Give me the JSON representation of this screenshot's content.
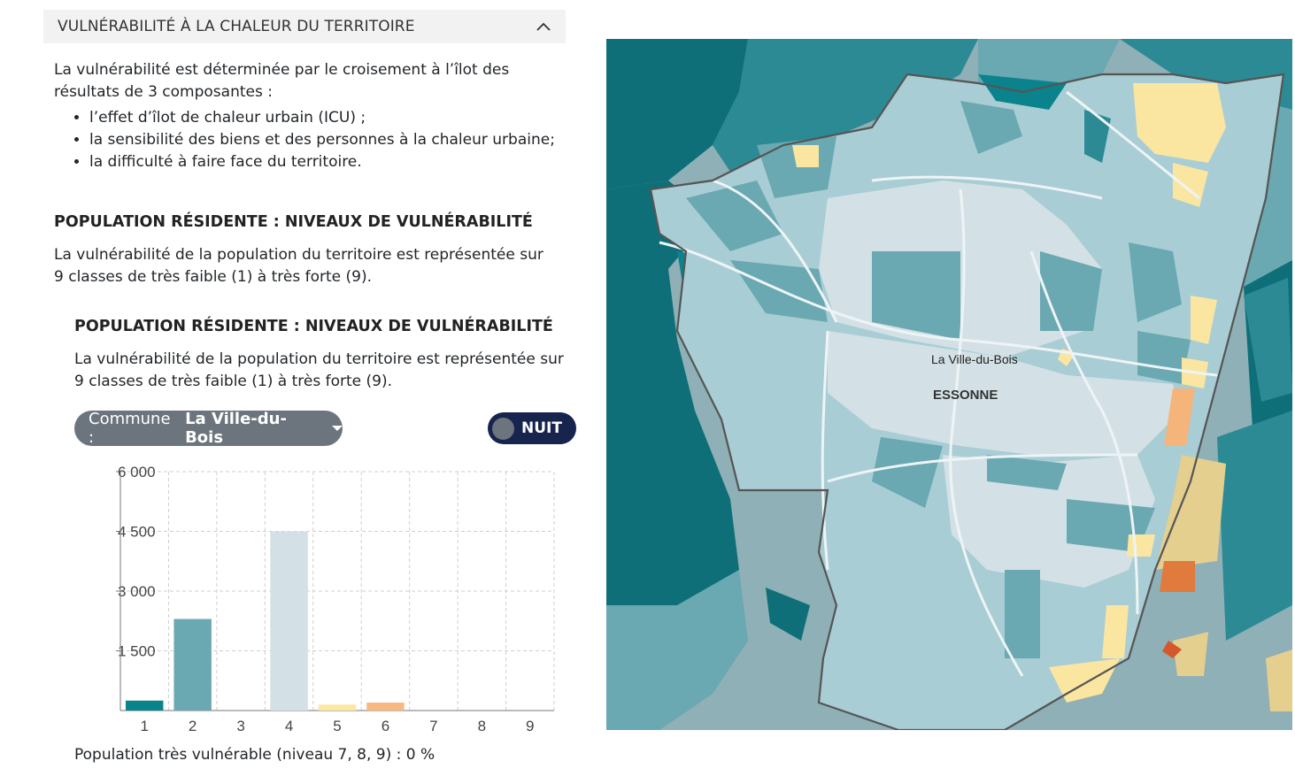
{
  "section": {
    "title": "VULNÉRABILITÉ À LA CHALEUR DU TERRITOIRE",
    "intro": "La vulnérabilité est déterminée par le croisement à l’îlot des résultats de 3 composantes :",
    "components": [
      "l’effet d’îlot de chaleur urbain (ICU) ;",
      "la sensibilité des biens et des personnes à la chaleur urbaine;",
      "la difficulté à faire face du territoire."
    ],
    "heading": "POPULATION RÉSIDENTE : NIVEAUX DE VULNÉRABILITÉ",
    "description": "La vulnérabilité de la population du territoire est représentée sur 9 classes de très faible (1) à très forte (9)."
  },
  "widget": {
    "heading": "POPULATION RÉSIDENTE : NIVEAUX DE VULNÉRABILITÉ",
    "description": "La vulnérabilité de la population du territoire est représentée sur 9 classes de très faible (1) à très forte (9).",
    "commune_prefix": "Commune :",
    "commune_value": "La Ville-du-Bois",
    "toggle_label": "NUIT",
    "footer": "Population très vulnérable (niveau 7, 8, 9) : 0 %"
  },
  "chart_data": {
    "type": "bar",
    "categories": [
      "1",
      "2",
      "3",
      "4",
      "5",
      "6",
      "7",
      "8",
      "9"
    ],
    "values": [
      250,
      2300,
      0,
      4500,
      150,
      200,
      0,
      0,
      0
    ],
    "colors": [
      "#0b838c",
      "#6aa8b2",
      "#b0d2d9",
      "#d3e1e6",
      "#fde7a3",
      "#f7b981",
      "#f08a4a",
      "#d5582a",
      "#b0301c"
    ],
    "yticks": [
      "6 000",
      "4 500",
      "3 000",
      "1 500"
    ],
    "ytick_values": [
      6000,
      4500,
      3000,
      1500
    ],
    "ylim": [
      0,
      6000
    ],
    "grid": true
  },
  "map": {
    "commune_label": "La Ville-du-Bois",
    "department_label": "ESSONNE",
    "colors": {
      "dark_teal": "#0e6f78",
      "teal": "#2c8a94",
      "mid_teal": "#6aa8b2",
      "light_teal": "#a9cdd4",
      "pale": "#d3e1e6",
      "grey_teal": "#8fb0b6",
      "yellow": "#fbe6a1",
      "orange": "#f5b47a",
      "dark_orange": "#e07a3d",
      "khaki": "#e4cf8f"
    }
  }
}
